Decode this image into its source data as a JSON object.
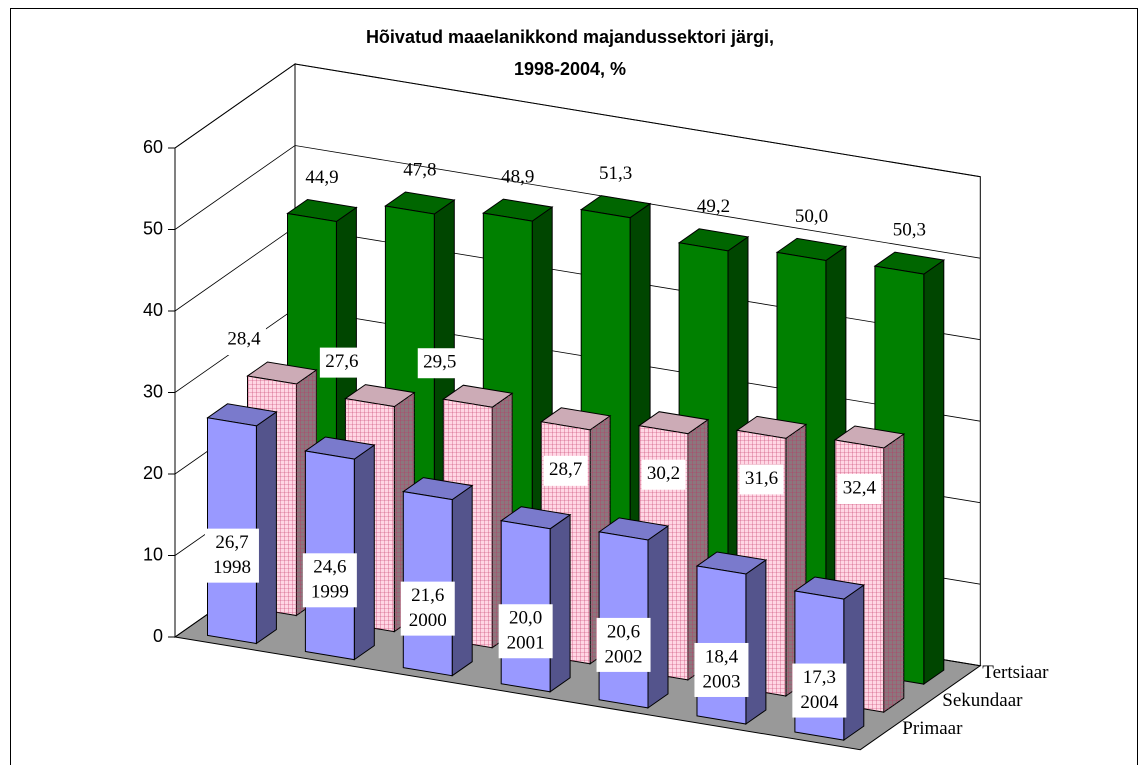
{
  "chart_data": {
    "type": "bar3d",
    "title": [
      "Hõivatud maaelanikkond majandussektori järgi,",
      "1998-2004, %"
    ],
    "categories": [
      "1998",
      "1999",
      "2000",
      "2001",
      "2002",
      "2003",
      "2004"
    ],
    "series": [
      {
        "name": "Primaar",
        "color": "#9999ff",
        "values": [
          26.7,
          24.6,
          21.6,
          20.0,
          20.6,
          18.4,
          17.3
        ],
        "value_labels": [
          "26,7",
          "24,6",
          "21,6",
          "20,0",
          "20,6",
          "18,4",
          "17,3"
        ]
      },
      {
        "name": "Sekundaar",
        "color": "#ffd6e4",
        "values": [
          28.4,
          27.6,
          29.5,
          28.7,
          30.2,
          31.6,
          32.4
        ],
        "value_labels": [
          "28,4",
          "27,6",
          "29,5",
          "28,7",
          "30,2",
          "31,6",
          "32,4"
        ]
      },
      {
        "name": "Tertsiaar",
        "color": "#008000",
        "values": [
          44.9,
          47.8,
          48.9,
          51.3,
          49.2,
          50.0,
          50.3
        ],
        "value_labels": [
          "44,9",
          "47,8",
          "48,9",
          "51,3",
          "49,2",
          "50,0",
          "50,3"
        ]
      }
    ],
    "ylim": [
      0,
      60
    ],
    "yticks": [
      0,
      10,
      20,
      30,
      40,
      50,
      60
    ],
    "grid": true
  }
}
